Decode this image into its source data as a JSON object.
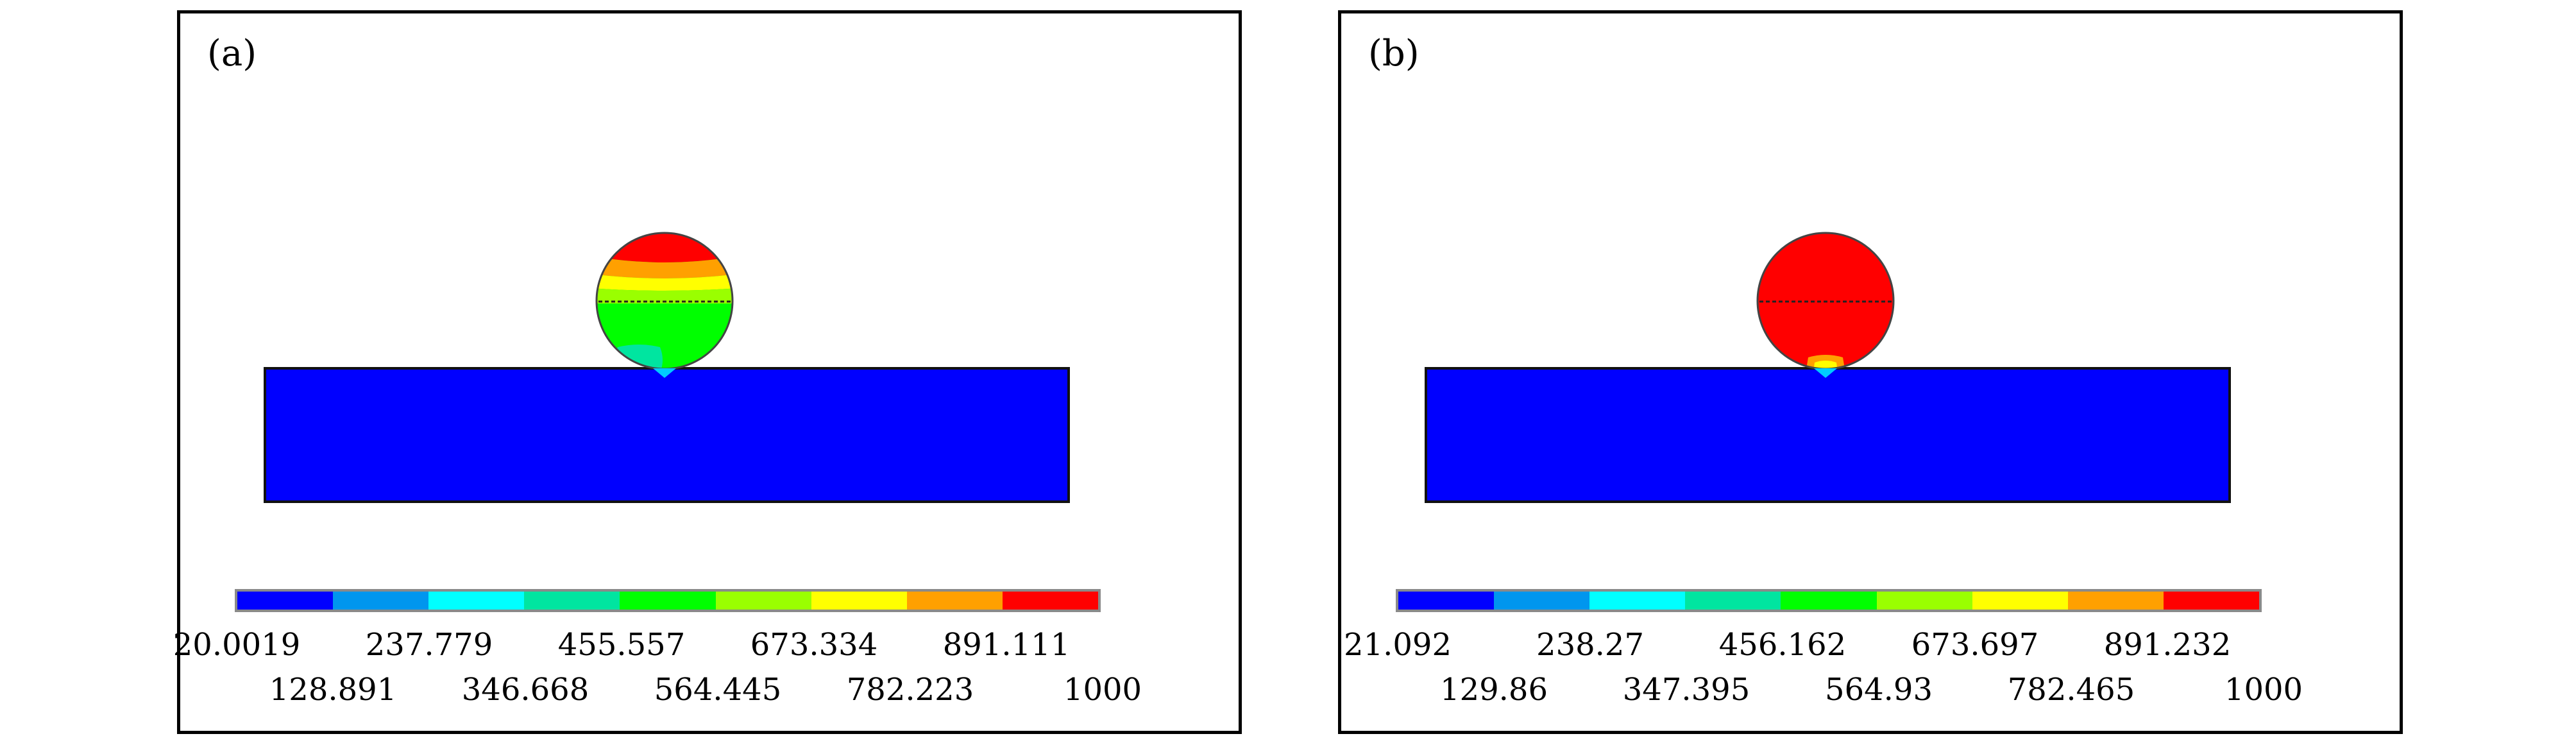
{
  "colormap": [
    "#0000ff",
    "#0096ee",
    "#00ffff",
    "#00e5a0",
    "#00ff00",
    "#9aff00",
    "#ffff00",
    "#ffa000",
    "#ff0000"
  ],
  "panels": [
    {
      "label": "(a)",
      "ticks_row1": [
        "20.0019",
        "237.779",
        "455.557",
        "673.334",
        "891.111"
      ],
      "ticks_row2": [
        "128.891",
        "346.668",
        "564.445",
        "782.223",
        "1000"
      ]
    },
    {
      "label": "(b)",
      "ticks_row1": [
        "21.092",
        "238.27",
        "456.162",
        "673.697",
        "891.232"
      ],
      "ticks_row2": [
        "129.86",
        "347.395",
        "564.93",
        "782.465",
        "1000"
      ]
    }
  ]
}
